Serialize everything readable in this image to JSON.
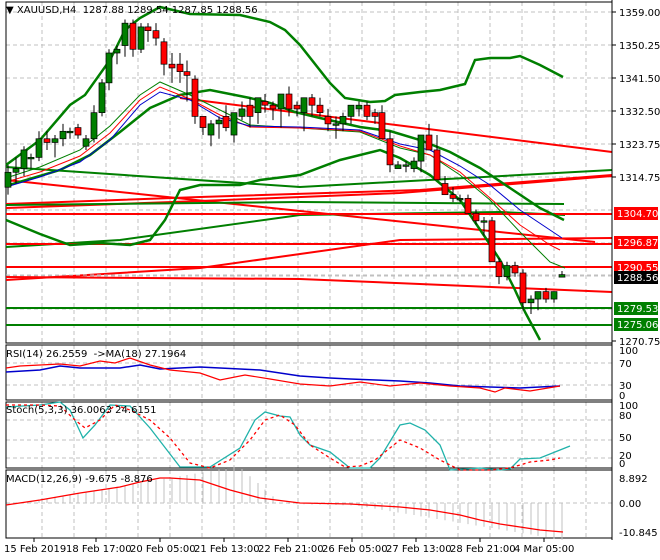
{
  "header": {
    "symbol": "XAUUSD,H4",
    "ohlc": "1287.88 1289.54 1287.85 1288.56"
  },
  "price_axis": {
    "ticks": [
      "1359.00",
      "1350.25",
      "1341.50",
      "1332.50",
      "1323.75",
      "1314.75",
      "1270.75"
    ],
    "tags": [
      {
        "value": "1304.70",
        "color": "#ff0000"
      },
      {
        "value": "1296.87",
        "color": "#ff0000"
      },
      {
        "value": "1290.55",
        "color": "#ff0000"
      },
      {
        "value": "1288.56",
        "color": "#000000"
      },
      {
        "value": "1279.53",
        "color": "#007f00"
      },
      {
        "value": "1275.06",
        "color": "#007f00"
      }
    ]
  },
  "rsi": {
    "label": "RSI(14) 26.2559  ->MA(18) 27.1964",
    "ticks": [
      "100",
      "70",
      "30",
      "0"
    ]
  },
  "stoch": {
    "label": "Stoch(5,3,3) 36.0063 24.6151",
    "ticks": [
      "100",
      "80",
      "50",
      "20",
      "0"
    ]
  },
  "macd": {
    "label": "MACD(12,26,9) -9.675 -8.876",
    "ticks": [
      "8.892",
      "0.00",
      "-10.845"
    ]
  },
  "time_axis": [
    "15 Feb 2019",
    "18 Feb 17:00",
    "20 Feb 05:00",
    "21 Feb 13:00",
    "22 Feb 21:00",
    "26 Feb 05:00",
    "27 Feb 13:00",
    "28 Feb 21:00",
    "4 Mar 05:00"
  ],
  "colors": {
    "bull": "#007f00",
    "bear": "#ff0000",
    "grid": "#c0c0c0",
    "rsi": "#ff0000",
    "rsi_ma": "#0000cc",
    "stoch_main": "#20b2aa",
    "stoch_signal": "#ff0000",
    "macd_hist": "#c0c0c0",
    "macd_signal": "#ff0000"
  },
  "chart_data": {
    "type": "candlestick",
    "title": "XAUUSD,H4",
    "ylim": [
      1268,
      1361
    ],
    "horizontal_levels": [
      {
        "value": 1304.7,
        "color": "red"
      },
      {
        "value": 1296.87,
        "color": "red"
      },
      {
        "value": 1290.55,
        "color": "red"
      },
      {
        "value": 1279.53,
        "color": "green"
      },
      {
        "value": 1275.06,
        "color": "green"
      }
    ],
    "candles": [
      [
        1312,
        1318,
        1310,
        1316
      ],
      [
        1316,
        1320,
        1313,
        1317
      ],
      [
        1317,
        1323,
        1315,
        1322
      ],
      [
        1320,
        1321,
        1317,
        1320
      ],
      [
        1320,
        1327,
        1319,
        1325
      ],
      [
        1325,
        1327,
        1322,
        1324
      ],
      [
        1324,
        1326,
        1320,
        1325
      ],
      [
        1325,
        1329,
        1323,
        1327
      ],
      [
        1327,
        1328,
        1325,
        1327
      ],
      [
        1328,
        1329,
        1325,
        1326
      ],
      [
        1323,
        1326,
        1322,
        1325
      ],
      [
        1325,
        1334,
        1324,
        1332
      ],
      [
        1332,
        1341,
        1331,
        1340
      ],
      [
        1340,
        1349,
        1338,
        1348
      ],
      [
        1348,
        1350,
        1345,
        1349
      ],
      [
        1350,
        1357,
        1347,
        1356
      ],
      [
        1356,
        1357,
        1347,
        1349
      ],
      [
        1349,
        1356,
        1348,
        1355
      ],
      [
        1355,
        1356,
        1351,
        1354
      ],
      [
        1354,
        1356,
        1350,
        1352
      ],
      [
        1351,
        1352,
        1342,
        1345
      ],
      [
        1345,
        1348,
        1340,
        1344
      ],
      [
        1345,
        1348,
        1340,
        1343
      ],
      [
        1343,
        1346,
        1335,
        1342
      ],
      [
        1341,
        1342,
        1329,
        1331
      ],
      [
        1331,
        1331,
        1326,
        1328
      ],
      [
        1326,
        1330,
        1323,
        1329
      ],
      [
        1329,
        1331,
        1325,
        1330
      ],
      [
        1331,
        1334,
        1327,
        1328
      ],
      [
        1326,
        1331,
        1324,
        1332
      ],
      [
        1331,
        1335,
        1330,
        1333
      ],
      [
        1334,
        1336,
        1328,
        1331
      ],
      [
        1332,
        1336,
        1329,
        1336
      ],
      [
        1335,
        1337,
        1332,
        1334
      ],
      [
        1334,
        1335,
        1330,
        1333
      ],
      [
        1333,
        1336,
        1328,
        1337
      ],
      [
        1337,
        1339,
        1331,
        1333
      ],
      [
        1334,
        1335,
        1331,
        1333
      ],
      [
        1332,
        1334,
        1327,
        1336
      ],
      [
        1336,
        1337,
        1331,
        1334
      ],
      [
        1334,
        1336,
        1331,
        1332
      ],
      [
        1331,
        1333,
        1327,
        1329
      ],
      [
        1329,
        1331,
        1325,
        1329
      ],
      [
        1329,
        1332,
        1327,
        1331
      ],
      [
        1331,
        1334,
        1329,
        1334
      ],
      [
        1333,
        1335,
        1331,
        1334
      ],
      [
        1334,
        1335,
        1330,
        1331
      ],
      [
        1332,
        1333,
        1329,
        1331
      ],
      [
        1332,
        1334,
        1325,
        1325
      ],
      [
        1325,
        1327,
        1316,
        1318
      ],
      [
        1317,
        1319,
        1318,
        1318
      ],
      [
        1318,
        1319,
        1316,
        1318
      ],
      [
        1317,
        1320,
        1316,
        1319
      ],
      [
        1319,
        1322,
        1316,
        1326
      ],
      [
        1326,
        1329,
        1322,
        1322
      ],
      [
        1322,
        1326,
        1314,
        1314
      ],
      [
        1313,
        1315,
        1311,
        1310
      ],
      [
        1310,
        1312,
        1308,
        1309
      ],
      [
        1309,
        1310,
        1308,
        1309
      ],
      [
        1309,
        1310,
        1305,
        1305
      ],
      [
        1305,
        1306,
        1302,
        1303
      ],
      [
        1303,
        1304,
        1299,
        1303
      ],
      [
        1303,
        1304,
        1292,
        1292
      ],
      [
        1292,
        1293,
        1286,
        1288
      ],
      [
        1288,
        1292,
        1287,
        1291
      ],
      [
        1291,
        1292,
        1288,
        1289
      ],
      [
        1289,
        1290,
        1279,
        1281
      ],
      [
        1281,
        1283,
        1278,
        1282
      ],
      [
        1282,
        1284,
        1279,
        1284
      ],
      [
        1284,
        1285,
        1281,
        1282
      ],
      [
        1282,
        1284,
        1281,
        1284
      ],
      [
        1287.88,
        1289.54,
        1287.85,
        1288.56
      ]
    ],
    "indicators": {
      "rsi": {
        "value": 26.2559,
        "ma18": 27.1964,
        "range": [
          0,
          100
        ],
        "levels": [
          30,
          70
        ]
      },
      "stoch": {
        "k": 36.0063,
        "d": 24.6151,
        "range": [
          0,
          100
        ],
        "levels": [
          20,
          50,
          80
        ]
      },
      "macd": {
        "hist": -9.675,
        "signal": -8.876,
        "range": [
          -10.845,
          8.892
        ]
      }
    },
    "x_tick_labels": [
      "15 Feb 2019",
      "18 Feb 17:00",
      "20 Feb 05:00",
      "21 Feb 13:00",
      "22 Feb 21:00",
      "26 Feb 05:00",
      "27 Feb 13:00",
      "28 Feb 21:00",
      "4 Mar 05:00"
    ],
    "grid": true
  }
}
